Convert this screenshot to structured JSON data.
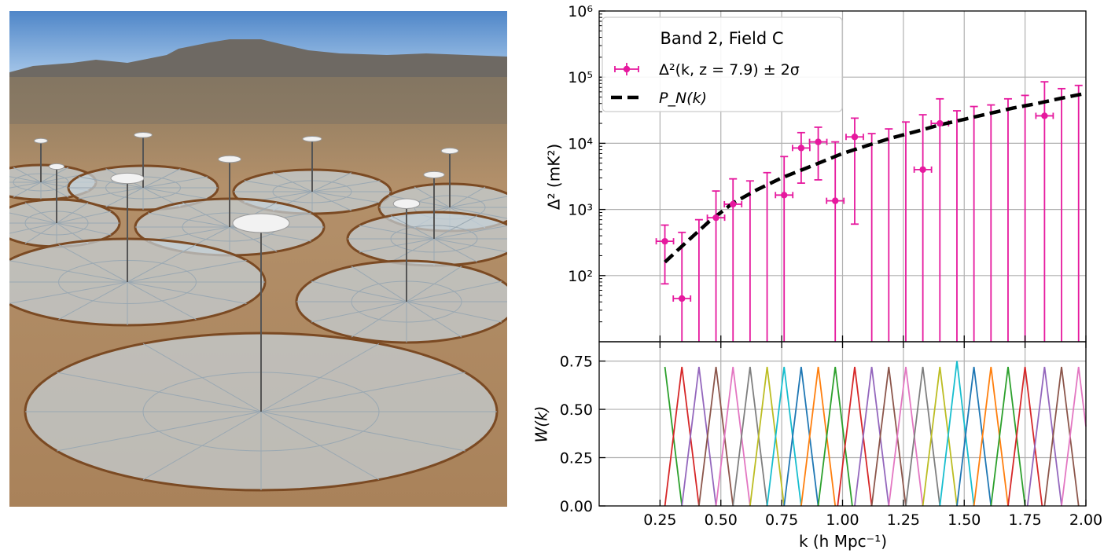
{
  "photo": {
    "colors": {
      "sky_top": "#4f86c8",
      "sky_bottom": "#a9c9ea",
      "mesa": "#6b6660",
      "ground": "#b08a5e",
      "dish_mesh": "#c6d3dc",
      "wood": "#7b4a23"
    }
  },
  "chart_data": [
    {
      "type": "scatter",
      "title": "",
      "legend": {
        "title": "Band 2, Field C",
        "placement": "top-left",
        "entries": [
          {
            "label": "Δ²(k,  z = 7.9)  ±  2σ",
            "color": "#e6199e",
            "style": "errorbar"
          },
          {
            "label": "P_N(k)",
            "color": "#000000",
            "style": "dashed"
          }
        ]
      },
      "ylabel": "Δ² (mK²)",
      "yscale": "log",
      "ylim": [
        10,
        1000000
      ],
      "ytick_labels": [
        "10²",
        "10³",
        "10⁴",
        "10⁵",
        "10⁶"
      ],
      "xlim": [
        0,
        2.0
      ],
      "grid": true,
      "series": [
        {
          "name": "Δ²(k,  z = 7.9)  ±  2σ",
          "color": "#e6199e",
          "points": [
            {
              "x": 0.27,
              "y": 330,
              "lo": 75,
              "hi": 580
            },
            {
              "x": 0.34,
              "y": 45,
              "lo": 10,
              "hi": 450
            },
            {
              "x": 0.41,
              "y": null,
              "lo": 10,
              "hi": 700
            },
            {
              "x": 0.48,
              "y": 750,
              "lo": 10,
              "hi": 1900
            },
            {
              "x": 0.55,
              "y": 1200,
              "lo": 10,
              "hi": 2900
            },
            {
              "x": 0.62,
              "y": null,
              "lo": 10,
              "hi": 2700
            },
            {
              "x": 0.69,
              "y": null,
              "lo": 10,
              "hi": 3600
            },
            {
              "x": 0.76,
              "y": 1650,
              "lo": 10,
              "hi": 6300
            },
            {
              "x": 0.83,
              "y": 8500,
              "lo": 2500,
              "hi": 14500
            },
            {
              "x": 0.9,
              "y": 10500,
              "lo": 2800,
              "hi": 17500
            },
            {
              "x": 0.97,
              "y": 1350,
              "lo": 10,
              "hi": 10500
            },
            {
              "x": 1.05,
              "y": 12500,
              "lo": 600,
              "hi": 24000
            },
            {
              "x": 1.12,
              "y": null,
              "lo": 10,
              "hi": 14000
            },
            {
              "x": 1.19,
              "y": null,
              "lo": 10,
              "hi": 16500
            },
            {
              "x": 1.26,
              "y": null,
              "lo": 10,
              "hi": 21000
            },
            {
              "x": 1.33,
              "y": 4000,
              "lo": 10,
              "hi": 27000
            },
            {
              "x": 1.4,
              "y": 20000,
              "lo": 10,
              "hi": 47000
            },
            {
              "x": 1.47,
              "y": null,
              "lo": 10,
              "hi": 31000
            },
            {
              "x": 1.54,
              "y": null,
              "lo": 10,
              "hi": 36000
            },
            {
              "x": 1.61,
              "y": null,
              "lo": 10,
              "hi": 38000
            },
            {
              "x": 1.68,
              "y": null,
              "lo": 10,
              "hi": 47000
            },
            {
              "x": 1.75,
              "y": null,
              "lo": 10,
              "hi": 53000
            },
            {
              "x": 1.83,
              "y": 26000,
              "lo": 10,
              "hi": 85000
            },
            {
              "x": 1.9,
              "y": null,
              "lo": 10,
              "hi": 67000
            },
            {
              "x": 1.97,
              "y": null,
              "lo": 10,
              "hi": 75000
            }
          ]
        },
        {
          "name": "P_N(k)",
          "color": "#000000",
          "style": "dashed",
          "x": [
            0.27,
            0.35,
            0.45,
            0.55,
            0.65,
            0.75,
            0.85,
            1.0,
            1.1,
            1.2,
            1.3,
            1.4,
            1.5,
            1.6,
            1.7,
            1.8,
            1.9,
            2.0
          ],
          "y": [
            160,
            300,
            650,
            1250,
            2000,
            3000,
            4200,
            7000,
            9200,
            12000,
            15000,
            19000,
            23000,
            28000,
            34000,
            40000,
            48000,
            57000
          ]
        }
      ]
    },
    {
      "type": "line",
      "title": "",
      "xlabel": "k (h Mpc⁻¹)",
      "ylabel": "W(k)",
      "xlim": [
        0,
        2.0
      ],
      "ylim": [
        0,
        0.85
      ],
      "xtick_labels": [
        "0.25",
        "0.50",
        "0.75",
        "1.00",
        "1.25",
        "1.50",
        "1.75",
        "2.00"
      ],
      "ytick_labels": [
        "0.00",
        "0.25",
        "0.50",
        "0.75"
      ],
      "grid": true,
      "window_functions": {
        "centers": [
          0.27,
          0.34,
          0.41,
          0.48,
          0.55,
          0.62,
          0.69,
          0.76,
          0.83,
          0.9,
          0.97,
          1.05,
          1.12,
          1.19,
          1.26,
          1.33,
          1.4,
          1.47,
          1.54,
          1.61,
          1.68,
          1.75,
          1.83,
          1.9,
          1.97
        ],
        "peaks": [
          0.72,
          0.72,
          0.72,
          0.72,
          0.72,
          0.72,
          0.72,
          0.72,
          0.72,
          0.72,
          0.72,
          0.72,
          0.72,
          0.72,
          0.72,
          0.72,
          0.72,
          0.75,
          0.72,
          0.72,
          0.72,
          0.72,
          0.72,
          0.72,
          0.72
        ],
        "half_width": 0.07,
        "x_start": 0.27,
        "x_end": 2.0,
        "colors": [
          "#2ca02c",
          "#d62728",
          "#9467bd",
          "#8c564b",
          "#e377c2",
          "#7f7f7f",
          "#bcbd22",
          "#17becf",
          "#1f77b4",
          "#ff7f0e"
        ]
      }
    }
  ]
}
